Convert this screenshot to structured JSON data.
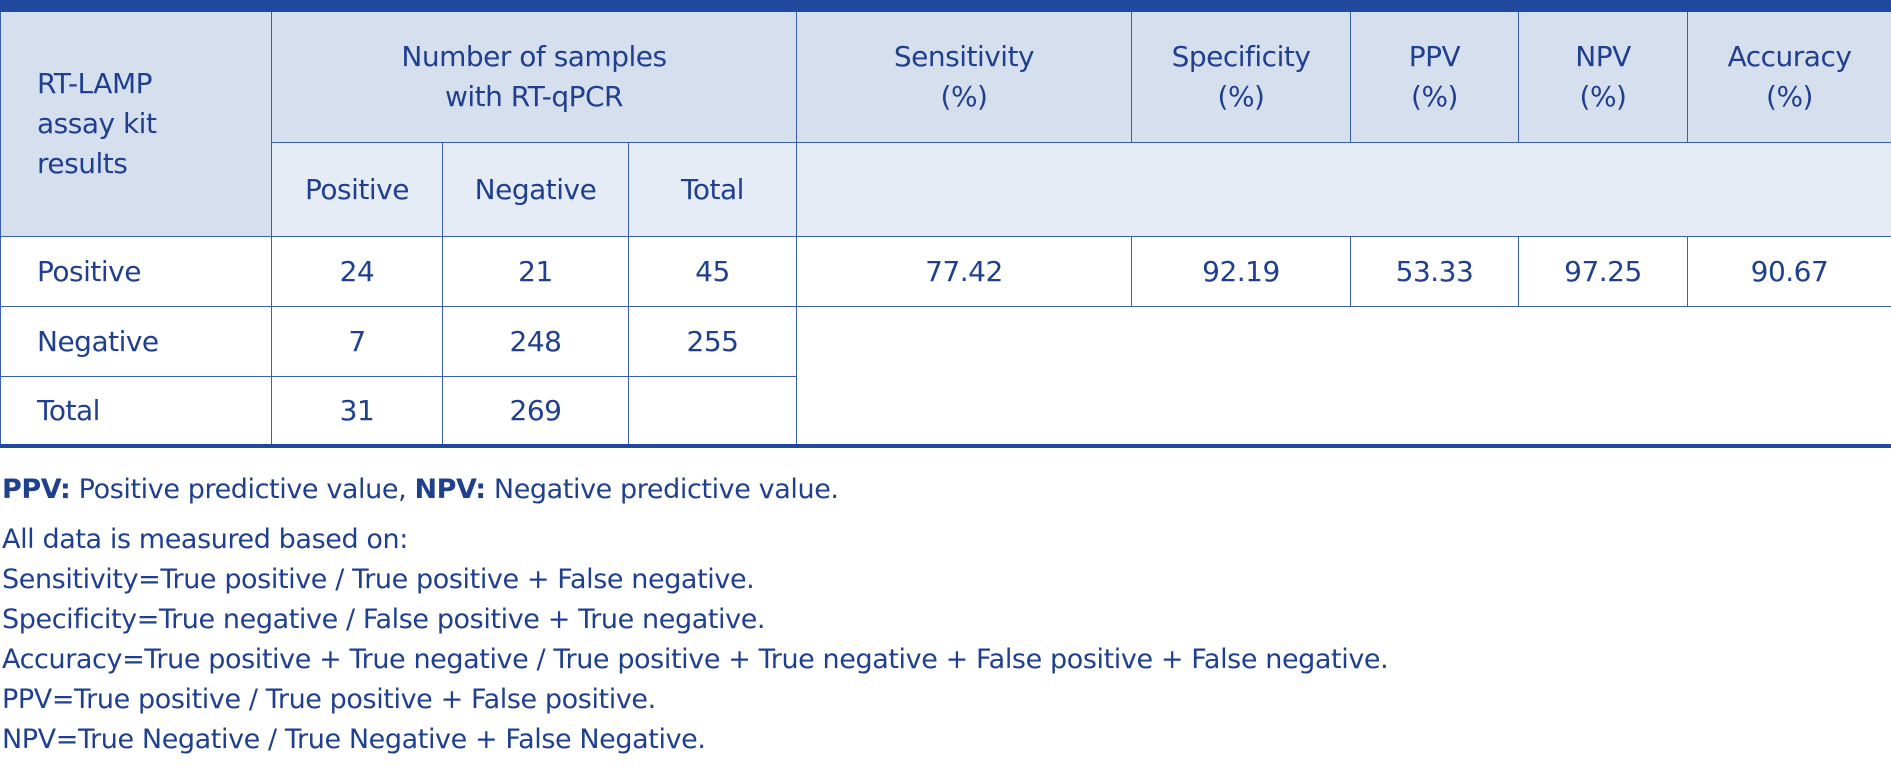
{
  "table": {
    "corner_header": [
      "RT-LAMP",
      "assay kit",
      "results"
    ],
    "group_header": [
      "Number of samples",
      "with RT-qPCR"
    ],
    "metric_headers": [
      {
        "name": "Sensitivity",
        "unit": "(%)"
      },
      {
        "name": "Specificity",
        "unit": "(%)"
      },
      {
        "name": "PPV",
        "unit": "(%)"
      },
      {
        "name": "NPV",
        "unit": "(%)"
      },
      {
        "name": "Accuracy",
        "unit": "(%)"
      }
    ],
    "sub_headers": [
      "Positive",
      "Negative",
      "Total"
    ],
    "rows": [
      {
        "label": "Positive",
        "positive": "24",
        "negative": "21",
        "total": "45"
      },
      {
        "label": "Negative",
        "positive": "7",
        "negative": "248",
        "total": "255"
      },
      {
        "label": "Total",
        "positive": "31",
        "negative": "269",
        "total": ""
      }
    ],
    "metrics": [
      "77.42",
      "92.19",
      "53.33",
      "97.25",
      "90.67"
    ]
  },
  "footnotes": {
    "abbr_ppv_term": "PPV:",
    "abbr_ppv_def": " Positive predictive value, ",
    "abbr_npv_term": "NPV:",
    "abbr_npv_def": " Negative predictive value.",
    "lines": [
      "All data is measured based on:",
      "Sensitivity=True positive / True positive + False negative.",
      "Specificity=True negative / False positive + True negative.",
      "Accuracy=True positive + True negative / True positive + True negative + False positive + False negative.",
      "PPV=True positive / True positive + False positive.",
      "NPV=True Negative / True Negative + False Negative."
    ]
  },
  "colors": {
    "text": "#1f3f8f",
    "rule": "#1f4a9e",
    "header_bg": "#d6dfee",
    "subheader_bg": "#e6ecf6"
  }
}
